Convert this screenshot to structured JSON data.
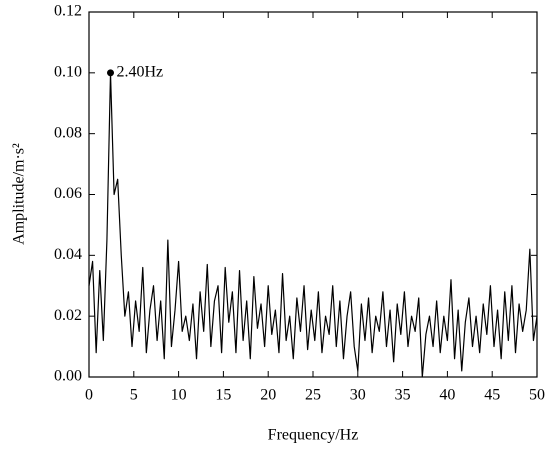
{
  "chart_data": {
    "type": "line",
    "xlabel": "Frequency/Hz",
    "ylabel": "Amplitude/m·s²",
    "x": [
      0,
      0.4,
      0.8,
      1.2,
      1.6,
      2,
      2.4,
      2.8,
      3.2,
      3.6,
      4,
      4.4,
      4.8,
      5.2,
      5.6,
      6,
      6.4,
      6.8,
      7.2,
      7.6,
      8,
      8.4,
      8.8,
      9.2,
      9.6,
      10,
      10.4,
      10.8,
      11.2,
      11.6,
      12,
      12.4,
      12.8,
      13.2,
      13.6,
      14,
      14.4,
      14.8,
      15.2,
      15.6,
      16,
      16.4,
      16.8,
      17.2,
      17.6,
      18,
      18.4,
      18.8,
      19.2,
      19.6,
      20,
      20.4,
      20.8,
      21.2,
      21.6,
      22,
      22.4,
      22.8,
      23.2,
      23.6,
      24,
      24.4,
      24.8,
      25.2,
      25.6,
      26,
      26.4,
      26.8,
      27.2,
      27.6,
      28,
      28.4,
      28.8,
      29.2,
      29.6,
      30,
      30.4,
      30.8,
      31.2,
      31.6,
      32,
      32.4,
      32.8,
      33.2,
      33.6,
      34,
      34.4,
      34.8,
      35.2,
      35.6,
      36,
      36.4,
      36.8,
      37.2,
      37.6,
      38,
      38.4,
      38.8,
      39.2,
      39.6,
      40,
      40.4,
      40.8,
      41.2,
      41.6,
      42,
      42.4,
      42.8,
      43.2,
      43.6,
      44,
      44.4,
      44.8,
      45.2,
      45.6,
      46,
      46.4,
      46.8,
      47.2,
      47.6,
      48,
      48.4,
      48.8,
      49.2,
      49.6,
      50
    ],
    "series": [
      {
        "color": "#000000",
        "values": [
          0.03,
          0.038,
          0.008,
          0.035,
          0.012,
          0.045,
          0.1,
          0.06,
          0.065,
          0.04,
          0.02,
          0.028,
          0.01,
          0.025,
          0.015,
          0.036,
          0.008,
          0.022,
          0.03,
          0.012,
          0.025,
          0.006,
          0.045,
          0.01,
          0.022,
          0.038,
          0.015,
          0.02,
          0.012,
          0.024,
          0.006,
          0.028,
          0.015,
          0.037,
          0.01,
          0.025,
          0.03,
          0.008,
          0.036,
          0.018,
          0.028,
          0.008,
          0.035,
          0.012,
          0.025,
          0.006,
          0.033,
          0.016,
          0.024,
          0.01,
          0.03,
          0.014,
          0.022,
          0.008,
          0.034,
          0.012,
          0.02,
          0.006,
          0.026,
          0.015,
          0.03,
          0.009,
          0.022,
          0.012,
          0.028,
          0.008,
          0.02,
          0.014,
          0.03,
          0.01,
          0.025,
          0.006,
          0.02,
          0.028,
          0.01,
          0.002,
          0.024,
          0.012,
          0.026,
          0.008,
          0.02,
          0.015,
          0.028,
          0.01,
          0.022,
          0.005,
          0.024,
          0.014,
          0.028,
          0.01,
          0.02,
          0.015,
          0.026,
          0,
          0.014,
          0.02,
          0.01,
          0.025,
          0.008,
          0.02,
          0.012,
          0.032,
          0.006,
          0.022,
          0.002,
          0.018,
          0.026,
          0.01,
          0.02,
          0.008,
          0.024,
          0.014,
          0.03,
          0.01,
          0.022,
          0.006,
          0.028,
          0.012,
          0.03,
          0.008,
          0.024,
          0.015,
          0.022,
          0.042,
          0.012,
          0.02
        ]
      }
    ],
    "annotation": {
      "text": "2.40Hz",
      "x": 2.4,
      "y": 0.1
    },
    "xlim": [
      0,
      50
    ],
    "xticks": [
      0,
      5,
      10,
      15,
      20,
      25,
      30,
      35,
      40,
      45,
      50
    ],
    "ylim": [
      0,
      0.12
    ],
    "yticks": [
      {
        "value": 0,
        "label": "0.00"
      },
      {
        "value": 0.02,
        "label": "0.02"
      },
      {
        "value": 0.04,
        "label": "0.04"
      },
      {
        "value": 0.06,
        "label": "0.06"
      },
      {
        "value": 0.08,
        "label": "0.08"
      },
      {
        "value": 0.1,
        "label": "0.10"
      },
      {
        "value": 0.12,
        "label": "0.12"
      }
    ]
  }
}
